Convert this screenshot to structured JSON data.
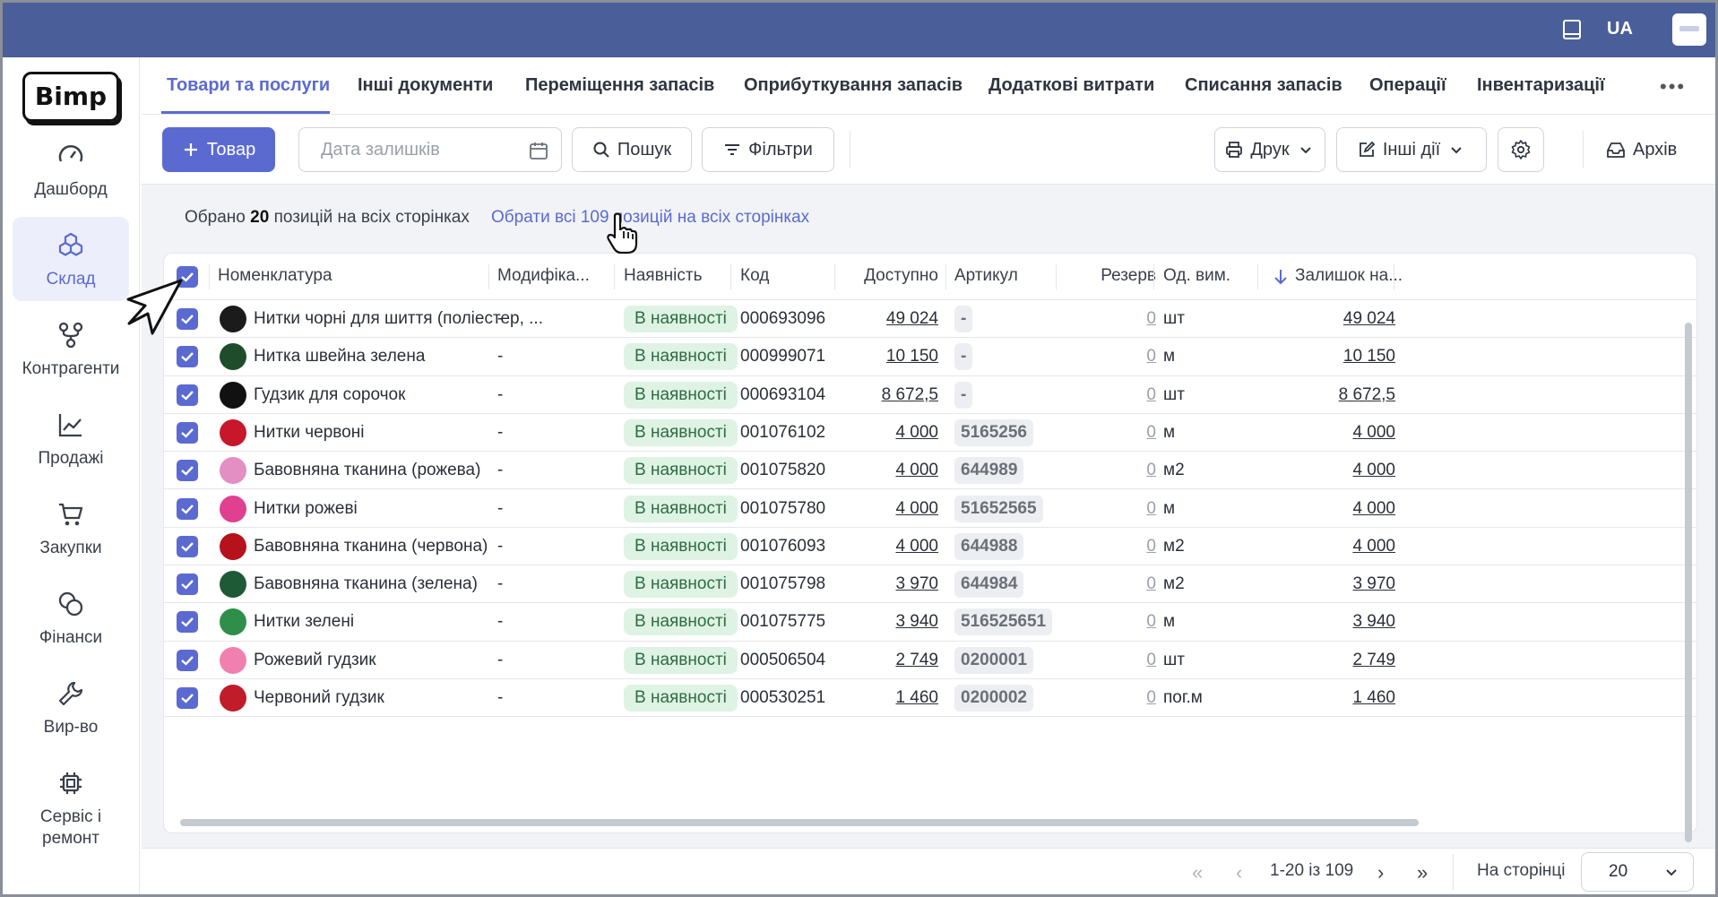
{
  "topbar": {
    "lang": "UA"
  },
  "sidebar": {
    "logo": "Bimp",
    "items": [
      {
        "label": "Дашборд",
        "icon": "gauge-icon"
      },
      {
        "label": "Склад",
        "icon": "boxes-icon",
        "active": true
      },
      {
        "label": "Контрагенти",
        "icon": "nodes-icon"
      },
      {
        "label": "Продажі",
        "icon": "chart-line-icon"
      },
      {
        "label": "Закупки",
        "icon": "cart-icon"
      },
      {
        "label": "Фінанси",
        "icon": "coins-icon"
      },
      {
        "label": "Вир-во",
        "icon": "wrench-icon"
      },
      {
        "label": "Сервіс і ремонт",
        "icon": "chip-icon"
      }
    ]
  },
  "tabs": [
    {
      "label": "Товари та послуги",
      "active": true
    },
    {
      "label": "Інші документи"
    },
    {
      "label": "Переміщення запасів"
    },
    {
      "label": "Оприбуткування запасів"
    },
    {
      "label": "Додаткові витрати"
    },
    {
      "label": "Списання запасів"
    },
    {
      "label": "Операції"
    },
    {
      "label": "Інвентаризації"
    }
  ],
  "toolbar": {
    "add_label": "Товар",
    "date_placeholder": "Дата залишків",
    "search_label": "Пошук",
    "filters_label": "Фільтри",
    "print_label": "Друк",
    "other_actions_label": "Інші дії",
    "archive_label": "Архів"
  },
  "selection": {
    "prefix": "Обрано",
    "count": "20",
    "suffix": "позицій на всіх сторінках",
    "select_all_link": "Обрати всі 109 позицій на всіх сторінках"
  },
  "table": {
    "headers": {
      "name": "Номенклатура",
      "modification": "Модифіка...",
      "availability": "Наявність",
      "code": "Код",
      "available": "Доступно",
      "article": "Артикул",
      "reserve": "Резерв",
      "unit": "Од. вим.",
      "stock": "Залишок на..."
    },
    "rows": [
      {
        "name": "Нитки чорні для шиття (поліестер, ...",
        "mod": "-",
        "status": "В наявності",
        "code": "000693096",
        "available": "49 024",
        "article": "-",
        "reserve": "0",
        "unit": "шт",
        "stock": "49 024",
        "thumb": "#1b1b1b"
      },
      {
        "name": "Нитка швейна зелена",
        "mod": "-",
        "status": "В наявності",
        "code": "000999071",
        "available": "10 150",
        "article": "-",
        "reserve": "0",
        "unit": "м",
        "stock": "10 150",
        "thumb": "#1f4d2c"
      },
      {
        "name": "Гудзик для сорочок",
        "mod": "-",
        "status": "В наявності",
        "code": "000693104",
        "available": "8 672,5",
        "article": "-",
        "reserve": "0",
        "unit": "шт",
        "stock": "8 672,5",
        "thumb": "#111111"
      },
      {
        "name": "Нитки червоні",
        "mod": "-",
        "status": "В наявності",
        "code": "001076102",
        "available": "4 000",
        "article": "5165256",
        "reserve": "0",
        "unit": "м",
        "stock": "4 000",
        "thumb": "#c8162a"
      },
      {
        "name": "Бавовняна тканина (рожева)",
        "mod": "-",
        "status": "В наявності",
        "code": "001075820",
        "available": "4 000",
        "article": "644989",
        "reserve": "0",
        "unit": "м2",
        "stock": "4 000",
        "thumb": "#e38fc4"
      },
      {
        "name": "Нитки рожеві",
        "mod": "-",
        "status": "В наявності",
        "code": "001075780",
        "available": "4 000",
        "article": "51652565",
        "reserve": "0",
        "unit": "м",
        "stock": "4 000",
        "thumb": "#e0408f"
      },
      {
        "name": "Бавовняна тканина (червона)",
        "mod": "-",
        "status": "В наявності",
        "code": "001076093",
        "available": "4 000",
        "article": "644988",
        "reserve": "0",
        "unit": "м2",
        "stock": "4 000",
        "thumb": "#b5121b"
      },
      {
        "name": "Бавовняна тканина (зелена)",
        "mod": "-",
        "status": "В наявності",
        "code": "001075798",
        "available": "3 970",
        "article": "644984",
        "reserve": "0",
        "unit": "м2",
        "stock": "3 970",
        "thumb": "#1e5a36"
      },
      {
        "name": "Нитки зелені",
        "mod": "-",
        "status": "В наявності",
        "code": "001075775",
        "available": "3 940",
        "article": "516525651",
        "reserve": "0",
        "unit": "м",
        "stock": "3 940",
        "thumb": "#2f8f4a"
      },
      {
        "name": "Рожевий гудзик",
        "mod": "-",
        "status": "В наявності",
        "code": "000506504",
        "available": "2 749",
        "article": "0200001",
        "reserve": "0",
        "unit": "шт",
        "stock": "2 749",
        "thumb": "#f080b0"
      },
      {
        "name": "Червоний гудзик",
        "mod": "-",
        "status": "В наявності",
        "code": "000530251",
        "available": "1 460",
        "article": "0200002",
        "reserve": "0",
        "unit": "пог.м",
        "stock": "1 460",
        "thumb": "#c01c2a"
      }
    ]
  },
  "pagination": {
    "range": "1-20 із 109",
    "per_page_label": "На сторінці",
    "per_page_value": "20"
  }
}
